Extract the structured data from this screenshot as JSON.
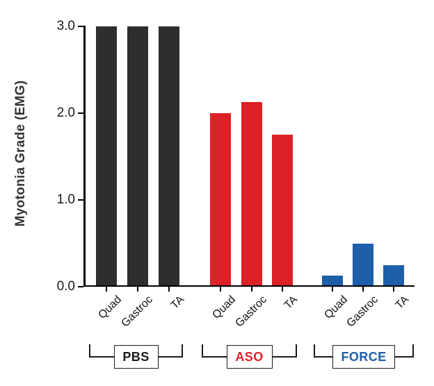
{
  "figure": {
    "background": "#ffffff",
    "axis_color": "#000000"
  },
  "chart_data": {
    "type": "bar",
    "title": "",
    "xlabel": "",
    "ylabel": "Myotonia Grade (EMG)",
    "ylim": [
      0,
      3
    ],
    "grid": false,
    "legend_position": "none",
    "yticks": [
      {
        "value": 0,
        "label": "0.0"
      },
      {
        "value": 1,
        "label": "1.0"
      },
      {
        "value": 2,
        "label": "2.0"
      },
      {
        "value": 3,
        "label": "3.0"
      }
    ],
    "categories": [
      "Quad",
      "Gastroc",
      "TA"
    ],
    "groups": [
      {
        "name": "PBS",
        "bar_color": "#2e2e30",
        "label_color": "#1a1a1a",
        "values": [
          3.0,
          3.0,
          3.0
        ]
      },
      {
        "name": "ASO",
        "bar_color": "#dc2127",
        "label_color": "#dc2127",
        "values": [
          2.0,
          2.125,
          1.75
        ]
      },
      {
        "name": "FORCE",
        "bar_color": "#1d5fa8",
        "label_color": "#1d5fa8",
        "values": [
          0.125,
          0.5,
          0.25
        ]
      }
    ]
  }
}
